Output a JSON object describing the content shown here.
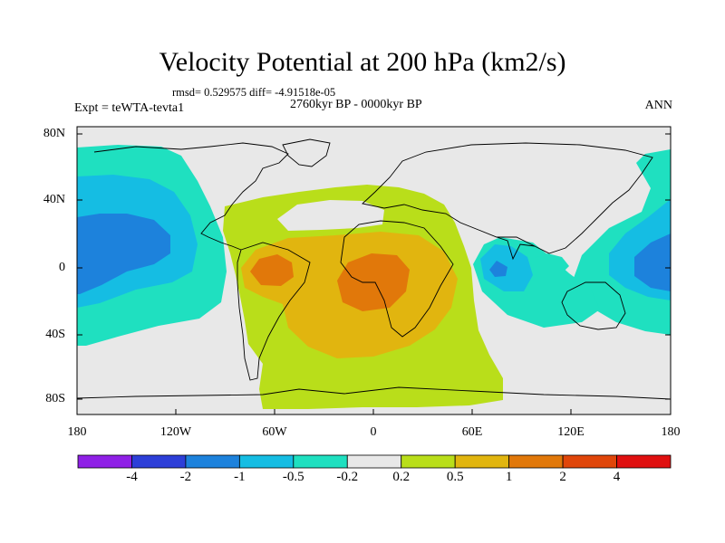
{
  "title": "Velocity Potential at 200 hPa (km2/s)",
  "stats": "rmsd= 0.529575  diff= -4.91518e-05",
  "experiment": "Expt = teWTA-tevta1",
  "period": "2760kyr BP - 0000kyr BP",
  "season": "ANN",
  "latitude_labels": [
    "80N",
    "40N",
    "0",
    "40S",
    "80S"
  ],
  "longitude_labels": [
    "180",
    "120W",
    "60W",
    "0",
    "60E",
    "120E",
    "180"
  ],
  "colorbar": {
    "labels": [
      "-4",
      "-2",
      "-1",
      "-0.5",
      "-0.2",
      "0.2",
      "0.5",
      "1",
      "2",
      "4"
    ],
    "colors": [
      "#8f20e6",
      "#2d3fd8",
      "#1d82dc",
      "#15bde3",
      "#1fe0c0",
      "#e8e8e8",
      "#b9de1a",
      "#e1b50f",
      "#e1780a",
      "#e0460a",
      "#e01010"
    ]
  },
  "fields": {
    "neutral": "#e8e8e8",
    "teal": "#1fe0c0",
    "cyan": "#15bde3",
    "blue": "#1d82dc",
    "lime": "#b9de1a",
    "yellow": "#e1b50f",
    "orange": "#e1780a"
  }
}
